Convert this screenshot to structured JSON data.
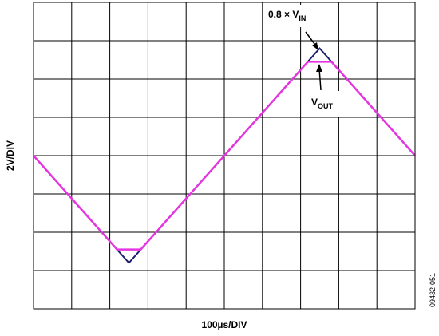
{
  "chart_data": {
    "type": "line",
    "xlabel": "100µs/DIV",
    "ylabel": "2V/DIV",
    "xlim": [
      0,
      1000
    ],
    "xticks": [
      0,
      100,
      200,
      300,
      400,
      500,
      600,
      700,
      800,
      900,
      1000
    ],
    "ylim": [
      -8,
      8
    ],
    "yticks": [
      -8,
      -6,
      -4,
      -2,
      0,
      2,
      4,
      6,
      8
    ],
    "grid": true,
    "series": [
      {
        "color": "#1b1f6b",
        "x": [
          0,
          250,
          750,
          1000
        ],
        "values": [
          0,
          -5.6,
          5.6,
          0
        ]
      },
      {
        "color": "#e535e0",
        "x": [
          0,
          219,
          281,
          719,
          781,
          1000
        ],
        "values": [
          0,
          -4.9,
          -4.9,
          4.9,
          4.9,
          0
        ]
      }
    ],
    "annotations": [
      {
        "text": "0.8 × V",
        "sub": "IN"
      },
      {
        "text": "V",
        "sub": "OUT"
      }
    ],
    "figure_id": "09432-051"
  }
}
